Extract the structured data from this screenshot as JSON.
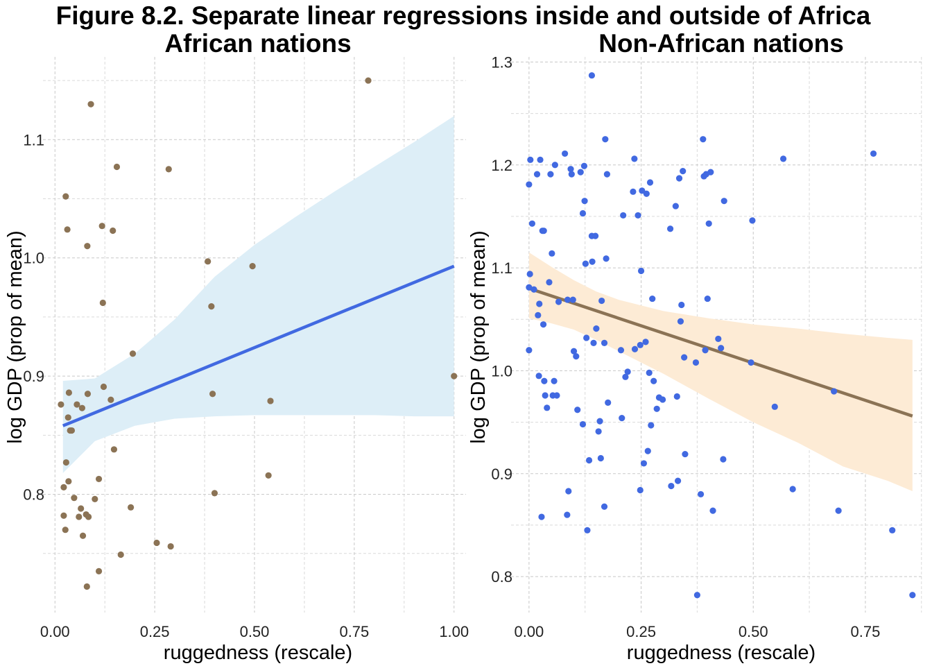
{
  "figure_title": "Figure 8.2. Separate linear regressions inside and outside of Africa",
  "chart_data": [
    {
      "type": "scatter",
      "title": "African nations",
      "xlabel": "ruggedness (rescale)",
      "ylabel": "log GDP (prop of mean)",
      "xlim": [
        -0.03,
        1.03
      ],
      "ylim": [
        0.7,
        1.17
      ],
      "xticks": [
        0,
        0.25,
        0.5,
        0.75,
        1
      ],
      "xtick_labels": [
        "0.00",
        "0.25",
        "0.50",
        "0.75",
        "1.00"
      ],
      "yticks": [
        0.8,
        0.9,
        1.0,
        1.1
      ],
      "ytick_labels": [
        "0.8",
        "0.9",
        "1.0",
        "1.1"
      ],
      "grid": true,
      "colors": {
        "points": "#8b7355",
        "line": "#4169e1",
        "band": "#ddeef7"
      },
      "points": [
        [
          0.015,
          0.876
        ],
        [
          0.022,
          0.806
        ],
        [
          0.022,
          0.782
        ],
        [
          0.027,
          1.052
        ],
        [
          0.026,
          0.77
        ],
        [
          0.028,
          0.827
        ],
        [
          0.031,
          1.024
        ],
        [
          0.033,
          0.865
        ],
        [
          0.035,
          0.886
        ],
        [
          0.034,
          0.811
        ],
        [
          0.038,
          0.854
        ],
        [
          0.042,
          0.854
        ],
        [
          0.048,
          0.797
        ],
        [
          0.055,
          0.876
        ],
        [
          0.06,
          0.781
        ],
        [
          0.065,
          0.788
        ],
        [
          0.068,
          0.873
        ],
        [
          0.07,
          0.765
        ],
        [
          0.078,
          0.783
        ],
        [
          0.08,
          0.722
        ],
        [
          0.081,
          1.01
        ],
        [
          0.082,
          0.885
        ],
        [
          0.084,
          0.781
        ],
        [
          0.09,
          1.13
        ],
        [
          0.1,
          0.796
        ],
        [
          0.11,
          0.813
        ],
        [
          0.11,
          0.735
        ],
        [
          0.118,
          1.027
        ],
        [
          0.12,
          0.962
        ],
        [
          0.122,
          0.891
        ],
        [
          0.14,
          0.88
        ],
        [
          0.145,
          1.023
        ],
        [
          0.148,
          0.838
        ],
        [
          0.155,
          1.077
        ],
        [
          0.165,
          0.749
        ],
        [
          0.19,
          0.789
        ],
        [
          0.195,
          0.919
        ],
        [
          0.255,
          0.759
        ],
        [
          0.285,
          1.075
        ],
        [
          0.29,
          0.756
        ],
        [
          0.383,
          0.997
        ],
        [
          0.392,
          0.959
        ],
        [
          0.395,
          0.885
        ],
        [
          0.4,
          0.801
        ],
        [
          0.495,
          0.993
        ],
        [
          0.535,
          0.816
        ],
        [
          0.54,
          0.879
        ],
        [
          0.785,
          1.15
        ],
        [
          1.0,
          0.9
        ]
      ],
      "fit": {
        "x": [
          0.02,
          1.0
        ],
        "y": [
          0.858,
          0.993
        ]
      },
      "band": {
        "x": [
          0.02,
          0.1,
          0.2,
          0.3,
          0.4,
          0.5,
          0.6,
          0.7,
          0.8,
          0.9,
          1.0
        ],
        "upper": [
          0.896,
          0.898,
          0.919,
          0.948,
          0.984,
          1.011,
          1.034,
          1.056,
          1.077,
          1.098,
          1.12
        ],
        "lower": [
          0.818,
          0.845,
          0.858,
          0.864,
          0.866,
          0.867,
          0.867,
          0.867,
          0.867,
          0.866,
          0.866
        ]
      }
    },
    {
      "type": "scatter",
      "title": "Non-African nations",
      "xlabel": "ruggedness (rescale)",
      "ylabel": "log GDP (prop of mean)",
      "xlim": [
        -0.04,
        0.88
      ],
      "ylim": [
        0.765,
        1.305
      ],
      "xticks": [
        0,
        0.25,
        0.5,
        0.75
      ],
      "xtick_labels": [
        "0.00",
        "0.25",
        "0.50",
        "0.75"
      ],
      "yticks": [
        0.8,
        0.9,
        1.0,
        1.1,
        1.2,
        1.3
      ],
      "ytick_labels": [
        "0.8",
        "0.9",
        "1.0",
        "1.1",
        "1.2",
        "1.3"
      ],
      "grid": true,
      "colors": {
        "points": "#4169e1",
        "line": "#8b7355",
        "band": "#fdebd5"
      },
      "points": [
        [
          0.0,
          1.181
        ],
        [
          0.002,
          1.094
        ],
        [
          0.0,
          1.081
        ],
        [
          0.0,
          1.02
        ],
        [
          0.003,
          1.205
        ],
        [
          0.007,
          1.143
        ],
        [
          0.011,
          1.079
        ],
        [
          0.018,
          1.191
        ],
        [
          0.02,
          1.054
        ],
        [
          0.022,
          0.995
        ],
        [
          0.023,
          1.065
        ],
        [
          0.025,
          1.205
        ],
        [
          0.028,
          0.858
        ],
        [
          0.03,
          1.136
        ],
        [
          0.033,
          1.136
        ],
        [
          0.034,
          0.99
        ],
        [
          0.032,
          1.045
        ],
        [
          0.036,
          0.976
        ],
        [
          0.04,
          0.964
        ],
        [
          0.045,
          1.086
        ],
        [
          0.048,
          1.191
        ],
        [
          0.051,
          1.114
        ],
        [
          0.053,
          0.976
        ],
        [
          0.056,
          0.99
        ],
        [
          0.058,
          1.2
        ],
        [
          0.062,
          0.976
        ],
        [
          0.066,
          1.067
        ],
        [
          0.08,
          1.211
        ],
        [
          0.085,
          0.86
        ],
        [
          0.086,
          1.069
        ],
        [
          0.088,
          0.883
        ],
        [
          0.093,
          1.196
        ],
        [
          0.095,
          1.191
        ],
        [
          0.098,
          1.069
        ],
        [
          0.1,
          1.019
        ],
        [
          0.105,
          1.014
        ],
        [
          0.108,
          0.962
        ],
        [
          0.115,
          1.193
        ],
        [
          0.12,
          1.153
        ],
        [
          0.12,
          0.948
        ],
        [
          0.123,
          1.199
        ],
        [
          0.124,
          1.165
        ],
        [
          0.126,
          1.104
        ],
        [
          0.128,
          1.032
        ],
        [
          0.13,
          0.845
        ],
        [
          0.134,
          0.913
        ],
        [
          0.14,
          1.287
        ],
        [
          0.14,
          1.131
        ],
        [
          0.141,
          1.106
        ],
        [
          0.144,
          1.027
        ],
        [
          0.148,
          1.131
        ],
        [
          0.15,
          1.041
        ],
        [
          0.155,
          0.941
        ],
        [
          0.158,
          0.951
        ],
        [
          0.16,
          0.915
        ],
        [
          0.162,
          1.068
        ],
        [
          0.168,
          1.027
        ],
        [
          0.168,
          0.868
        ],
        [
          0.17,
          1.225
        ],
        [
          0.172,
          1.109
        ],
        [
          0.174,
          1.191
        ],
        [
          0.176,
          0.969
        ],
        [
          0.205,
          1.02
        ],
        [
          0.207,
          0.954
        ],
        [
          0.21,
          1.151
        ],
        [
          0.215,
          0.994
        ],
        [
          0.22,
          0.999
        ],
        [
          0.232,
          1.174
        ],
        [
          0.235,
          1.206
        ],
        [
          0.236,
          1.021
        ],
        [
          0.243,
          1.151
        ],
        [
          0.248,
          0.884
        ],
        [
          0.248,
          1.025
        ],
        [
          0.25,
          1.097
        ],
        [
          0.252,
          1.175
        ],
        [
          0.256,
          0.91
        ],
        [
          0.26,
          1.028
        ],
        [
          0.262,
          1.172
        ],
        [
          0.265,
          0.922
        ],
        [
          0.268,
          0.998
        ],
        [
          0.27,
          1.183
        ],
        [
          0.272,
          0.947
        ],
        [
          0.275,
          1.07
        ],
        [
          0.278,
          0.99
        ],
        [
          0.285,
          0.963
        ],
        [
          0.29,
          0.974
        ],
        [
          0.298,
          0.972
        ],
        [
          0.315,
          1.138
        ],
        [
          0.317,
          0.888
        ],
        [
          0.327,
          1.16
        ],
        [
          0.33,
          0.975
        ],
        [
          0.332,
          0.893
        ],
        [
          0.335,
          1.187
        ],
        [
          0.338,
          1.048
        ],
        [
          0.34,
          1.064
        ],
        [
          0.343,
          1.194
        ],
        [
          0.346,
          1.013
        ],
        [
          0.348,
          0.919
        ],
        [
          0.372,
          1.008
        ],
        [
          0.375,
          0.782
        ],
        [
          0.383,
          0.88
        ],
        [
          0.388,
          1.225
        ],
        [
          0.39,
          1.189
        ],
        [
          0.393,
          1.02
        ],
        [
          0.395,
          1.191
        ],
        [
          0.398,
          1.07
        ],
        [
          0.401,
          1.143
        ],
        [
          0.405,
          1.193
        ],
        [
          0.41,
          0.864
        ],
        [
          0.422,
          1.031
        ],
        [
          0.428,
          1.022
        ],
        [
          0.433,
          0.914
        ],
        [
          0.435,
          1.165
        ],
        [
          0.495,
          1.008
        ],
        [
          0.498,
          1.146
        ],
        [
          0.548,
          0.965
        ],
        [
          0.567,
          1.206
        ],
        [
          0.588,
          0.885
        ],
        [
          0.68,
          0.98
        ],
        [
          0.69,
          0.864
        ],
        [
          0.768,
          1.211
        ],
        [
          0.81,
          0.845
        ],
        [
          0.855,
          0.782
        ]
      ],
      "fit": {
        "x": [
          0.0,
          0.855
        ],
        "y": [
          1.08,
          0.956
        ]
      },
      "band": {
        "x": [
          0.0,
          0.05,
          0.1,
          0.15,
          0.2,
          0.3,
          0.4,
          0.5,
          0.6,
          0.7,
          0.8,
          0.855
        ],
        "upper": [
          1.115,
          1.101,
          1.088,
          1.077,
          1.069,
          1.058,
          1.051,
          1.045,
          1.041,
          1.036,
          1.032,
          1.03
        ],
        "lower": [
          1.051,
          1.046,
          1.04,
          1.03,
          1.019,
          0.997,
          0.973,
          0.95,
          0.93,
          0.907,
          0.893,
          0.883
        ]
      }
    }
  ]
}
